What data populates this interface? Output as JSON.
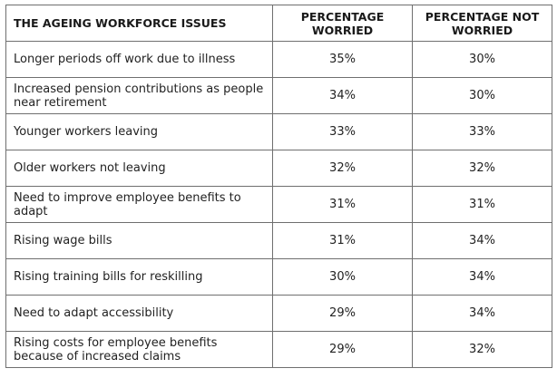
{
  "table": {
    "headers": {
      "issue": "THE AGEING WORKFORCE ISSUES",
      "worried": "PERCENTAGE WORRIED",
      "not_worried": "PERCENTAGE NOT WORRIED"
    },
    "rows": [
      {
        "issue": "Longer periods off work due to illness",
        "worried": "35%",
        "not_worried": "30%"
      },
      {
        "issue": "Increased pension contributions as people near retirement",
        "worried": "34%",
        "not_worried": "30%"
      },
      {
        "issue": "Younger workers leaving",
        "worried": "33%",
        "not_worried": "33%"
      },
      {
        "issue": "Older workers not leaving",
        "worried": "32%",
        "not_worried": "32%"
      },
      {
        "issue": "Need to improve employee benefits to adapt",
        "worried": "31%",
        "not_worried": "31%"
      },
      {
        "issue": "Rising wage bills",
        "worried": "31%",
        "not_worried": "34%"
      },
      {
        "issue": "Rising training bills for reskilling",
        "worried": "30%",
        "not_worried": "34%"
      },
      {
        "issue": "Need to adapt accessibility",
        "worried": "29%",
        "not_worried": "34%"
      },
      {
        "issue": "Rising costs for employee benefits because of increased claims",
        "worried": "29%",
        "not_worried": "32%"
      }
    ]
  }
}
